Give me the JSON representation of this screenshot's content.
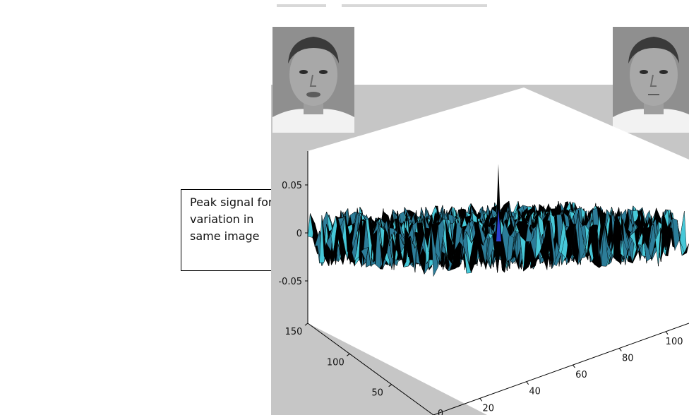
{
  "caption": {
    "lines": [
      "Peak signal for",
      "variation in",
      "same image"
    ]
  },
  "colors": {
    "panel_gray": "#c6c6c6",
    "axes_plane": "#ffffff",
    "surface_main": "#2c7d99",
    "surface_light": "#46c8d8",
    "surface_dark": "#000000",
    "peak_blue": "#2a3fd0"
  },
  "photos": {
    "left": {
      "icon": "face-portrait-icon"
    },
    "right": {
      "icon": "face-portrait-icon"
    }
  },
  "chart_data": {
    "type": "surface",
    "title": "",
    "xlabel": "",
    "ylabel": "",
    "zlabel": "",
    "x_ticks": [
      "20",
      "40",
      "60",
      "80",
      "100"
    ],
    "y_ticks": [
      "0",
      "50",
      "100",
      "150"
    ],
    "z_ticks": [
      "0.05",
      "0",
      "-0.05"
    ],
    "x_range": [
      0,
      110
    ],
    "y_range": [
      0,
      150
    ],
    "z_range": [
      -0.05,
      0.05
    ],
    "extra_tick_labels": [
      "0"
    ],
    "surface": {
      "description_grid": "noise surface centered near zero with a single sharp correlation peak",
      "noise_level_z": [
        -0.03,
        0.03
      ],
      "peak": {
        "x": 55,
        "y": 75,
        "z": 0.07
      }
    },
    "grid": false
  }
}
